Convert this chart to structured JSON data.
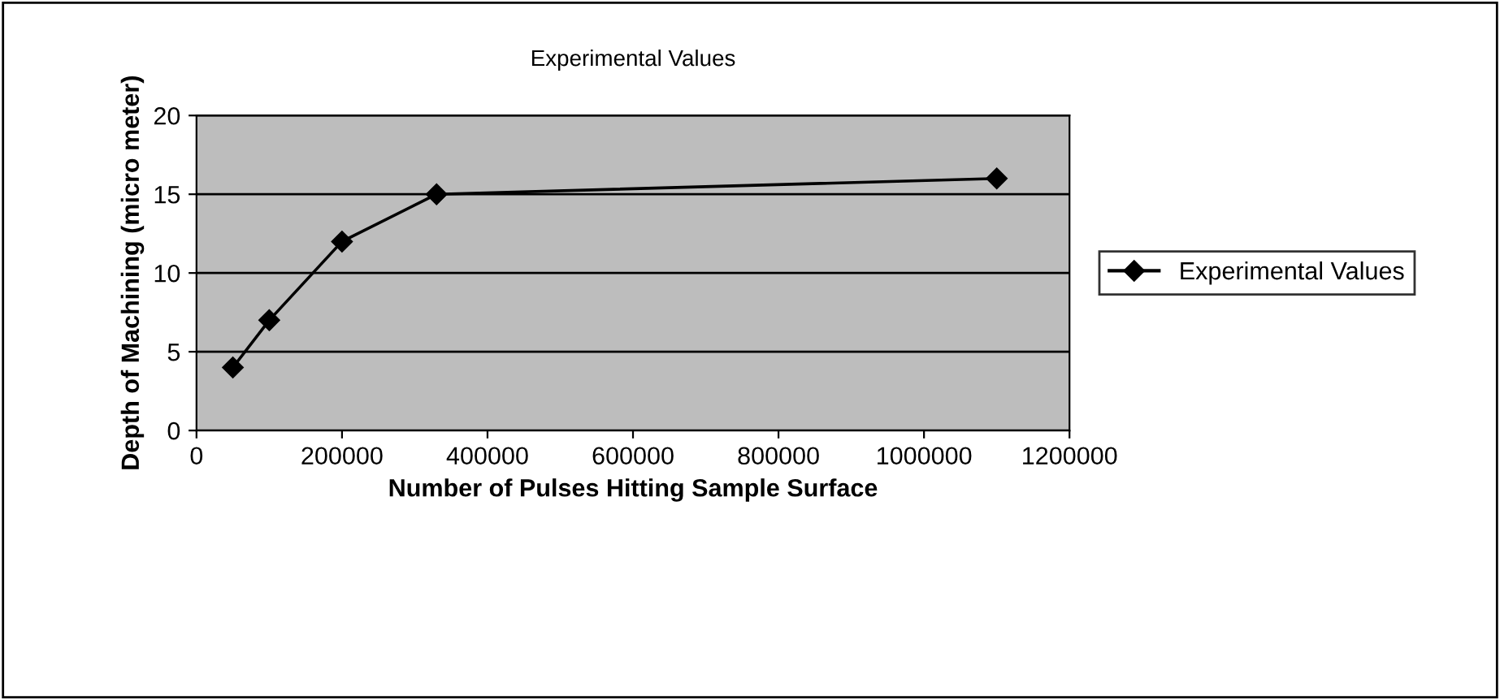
{
  "chart_data": {
    "type": "line",
    "title": "Experimental Values",
    "xlabel": "Number of Pulses Hitting Sample Surface",
    "ylabel": "Depth of Machining (micro meter)",
    "x": [
      50000,
      100000,
      200000,
      330000,
      1100000
    ],
    "series": [
      {
        "name": "Experimental Values",
        "color": "#000000",
        "values": [
          4,
          7,
          12,
          15,
          16
        ]
      }
    ],
    "xlim": [
      0,
      1200000
    ],
    "xticks": [
      0,
      200000,
      400000,
      600000,
      800000,
      1000000,
      1200000
    ],
    "ylim": [
      0,
      20
    ],
    "yticks": [
      0,
      5,
      10,
      15,
      20
    ],
    "grid": "y",
    "legend": "right",
    "marker": "diamond",
    "line_style": "solid"
  }
}
